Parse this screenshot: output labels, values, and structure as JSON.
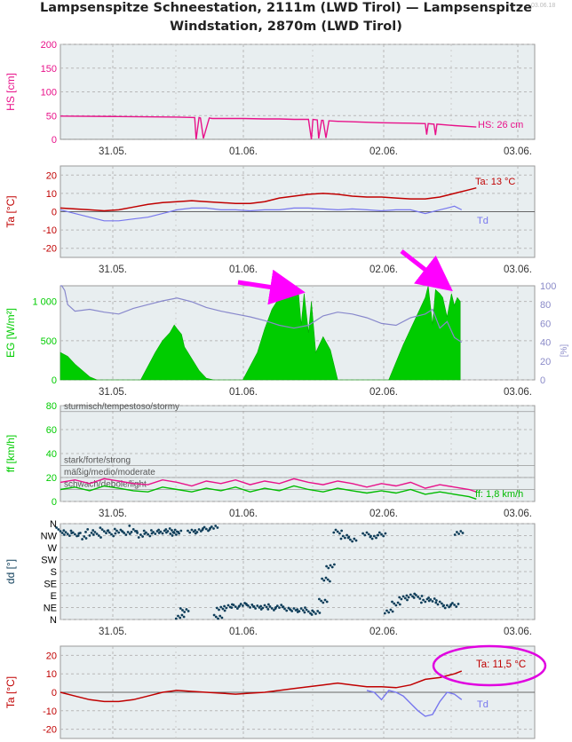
{
  "title": {
    "line1": "Lampsenspitze Schneestation, 2111m (LWD Tirol) — Lampsenspitze",
    "line2": "Windstation, 2870m (LWD Tirol)",
    "stamp": "03.06.18"
  },
  "x_tick_labels": [
    "31.05.",
    "01.06.",
    "02.06.",
    "03.06."
  ],
  "colors": {
    "snow": "#e8128a",
    "temp": "#c00000",
    "dew": "#7777ee",
    "radiation": "#00cc00",
    "humidity": "#8888cc",
    "wind": "#e8128a",
    "wind_mean": "#00bb00",
    "dir": "#0f3e5a",
    "annot_arrow": "#ff00ff",
    "annot_circle": "#e000e0",
    "plot_bg": "#e8eef0"
  },
  "chart_data": [
    {
      "type": "line",
      "ylabel": "HS [cm]",
      "ylim": [
        0,
        200
      ],
      "yticks": [
        "0",
        "50",
        "100",
        "150",
        "200"
      ],
      "xlim": [
        0,
        3.25
      ],
      "series": [
        {
          "name": "HS",
          "x": [
            0,
            0.4,
            0.8,
            0.92,
            0.93,
            0.95,
            0.96,
            0.98,
            1.02,
            1.04,
            1.1,
            1.25,
            1.4,
            1.5,
            1.6,
            1.7,
            1.72,
            1.73,
            1.76,
            1.77,
            1.79,
            1.8,
            1.82,
            1.84,
            1.9,
            2.0,
            2.2,
            2.4,
            2.5,
            2.51,
            2.52,
            2.56,
            2.57,
            2.58,
            2.7,
            2.85
          ],
          "values": [
            49,
            48,
            47,
            46,
            0,
            46,
            45,
            2,
            45,
            44,
            44,
            44,
            43,
            43,
            42,
            42,
            0,
            42,
            41,
            2,
            40,
            40,
            3,
            39,
            38,
            37,
            35,
            34,
            33,
            10,
            33,
            32,
            9,
            32,
            29,
            26
          ]
        }
      ],
      "end_label": "HS: 26 cm"
    },
    {
      "type": "line",
      "ylabel": "Ta [°C]",
      "ylim": [
        -25,
        25
      ],
      "yticks": [
        "-20",
        "-10",
        "0",
        "10",
        "20"
      ],
      "xlim": [
        0,
        3.25
      ],
      "series": [
        {
          "name": "Ta",
          "x": [
            0,
            0.1,
            0.2,
            0.3,
            0.4,
            0.5,
            0.6,
            0.7,
            0.8,
            0.9,
            1.0,
            1.1,
            1.2,
            1.3,
            1.4,
            1.5,
            1.6,
            1.7,
            1.8,
            1.9,
            2.0,
            2.1,
            2.2,
            2.3,
            2.4,
            2.5,
            2.6,
            2.7,
            2.8,
            2.85
          ],
          "values": [
            2,
            1.5,
            1,
            0.5,
            1,
            2.5,
            4,
            5,
            5.5,
            6,
            5.5,
            5,
            4.5,
            4.5,
            5.5,
            7.5,
            8.5,
            9.5,
            10,
            9.5,
            8.5,
            8,
            8,
            7.5,
            7,
            7,
            8,
            10,
            12,
            13
          ]
        },
        {
          "name": "Td",
          "x": [
            0,
            0.1,
            0.2,
            0.3,
            0.4,
            0.5,
            0.6,
            0.7,
            0.8,
            0.9,
            1.0,
            1.1,
            1.2,
            1.3,
            1.4,
            1.5,
            1.6,
            1.7,
            1.8,
            1.9,
            2.0,
            2.1,
            2.2,
            2.3,
            2.4,
            2.5,
            2.6,
            2.65,
            2.7,
            2.75
          ],
          "values": [
            1,
            -1,
            -3,
            -5,
            -5,
            -4,
            -3,
            -1,
            1,
            2,
            2,
            1,
            1,
            0.5,
            1,
            1,
            2,
            2,
            1.5,
            1,
            1.5,
            1,
            0.5,
            1,
            1,
            -1,
            1,
            2,
            3,
            1
          ]
        }
      ],
      "end_labels": [
        "Ta: 13 °C",
        "Td"
      ]
    },
    {
      "type": "area",
      "ylabel": "EG [W/m²]",
      "ylim": [
        0,
        1200
      ],
      "yticks": [
        "0",
        "500",
        "1 000"
      ],
      "y2label": "[%]",
      "y2lim": [
        0,
        100
      ],
      "y2ticks": [
        "0",
        "20",
        "40",
        "60",
        "80",
        "100"
      ],
      "xlim": [
        0,
        3.25
      ],
      "series": [
        {
          "name": "EG",
          "x": [
            0,
            0.05,
            0.1,
            0.2,
            0.25,
            0.55,
            0.65,
            0.7,
            0.75,
            0.78,
            0.8,
            0.83,
            0.85,
            0.95,
            1.0,
            1.05,
            1.25,
            1.35,
            1.4,
            1.45,
            1.5,
            1.55,
            1.6,
            1.63,
            1.65,
            1.67,
            1.7,
            1.72,
            1.75,
            1.8,
            1.85,
            1.9,
            2.25,
            2.35,
            2.45,
            2.5,
            2.52,
            2.55,
            2.57,
            2.6,
            2.62,
            2.65,
            2.68,
            2.7,
            2.72,
            2.74
          ],
          "values": [
            350,
            300,
            200,
            40,
            0,
            0,
            350,
            500,
            600,
            700,
            650,
            580,
            420,
            120,
            20,
            0,
            0,
            350,
            650,
            900,
            1050,
            1150,
            1180,
            1150,
            700,
            1100,
            600,
            1000,
            350,
            550,
            380,
            0,
            0,
            450,
            850,
            1050,
            1200,
            700,
            1150,
            1100,
            1050,
            800,
            1100,
            950,
            1050,
            1000
          ]
        },
        {
          "name": "RH",
          "axis": "right",
          "x": [
            0.0,
            0.01,
            0.03,
            0.05,
            0.1,
            0.2,
            0.3,
            0.4,
            0.5,
            0.6,
            0.7,
            0.8,
            0.9,
            1.0,
            1.1,
            1.2,
            1.3,
            1.4,
            1.5,
            1.6,
            1.7,
            1.8,
            1.9,
            2.0,
            2.1,
            2.2,
            2.3,
            2.4,
            2.5,
            2.55,
            2.6,
            2.65,
            2.7,
            2.75
          ],
          "values": [
            100,
            100,
            95,
            80,
            73,
            75,
            72,
            70,
            76,
            80,
            84,
            87,
            83,
            77,
            73,
            70,
            67,
            63,
            58,
            55,
            58,
            68,
            72,
            70,
            66,
            60,
            58,
            66,
            70,
            75,
            55,
            62,
            45,
            40
          ]
        }
      ]
    },
    {
      "type": "line",
      "ylabel": "ff [km/h]",
      "ylim": [
        0,
        80
      ],
      "yticks": [
        "0",
        "20",
        "40",
        "60",
        "80"
      ],
      "xlim": [
        0,
        3.25
      ],
      "category_lines": [
        {
          "label": "sturmisch/tempestoso/stormy",
          "value": 75
        },
        {
          "label": "stark/forte/strong",
          "value": 30
        },
        {
          "label": "mäßig/medio/moderate",
          "value": 20
        },
        {
          "label": "schwach/debole/light",
          "value": 10
        }
      ],
      "series": [
        {
          "name": "ff max",
          "x": [
            0,
            0.1,
            0.2,
            0.3,
            0.4,
            0.5,
            0.6,
            0.7,
            0.8,
            0.9,
            1.0,
            1.1,
            1.2,
            1.3,
            1.4,
            1.5,
            1.6,
            1.7,
            1.8,
            1.9,
            2.0,
            2.1,
            2.2,
            2.3,
            2.4,
            2.5,
            2.6,
            2.7,
            2.8,
            2.85
          ],
          "values": [
            16,
            18,
            15,
            19,
            17,
            15,
            14,
            18,
            16,
            13,
            17,
            15,
            18,
            14,
            17,
            15,
            19,
            16,
            14,
            17,
            15,
            12,
            15,
            13,
            16,
            11,
            14,
            12,
            10,
            8
          ]
        },
        {
          "name": "ff",
          "x": [
            0,
            0.1,
            0.2,
            0.3,
            0.4,
            0.5,
            0.6,
            0.7,
            0.8,
            0.9,
            1.0,
            1.1,
            1.2,
            1.3,
            1.4,
            1.5,
            1.6,
            1.7,
            1.8,
            1.9,
            2.0,
            2.1,
            2.2,
            2.3,
            2.4,
            2.5,
            2.6,
            2.7,
            2.8,
            2.85
          ],
          "values": [
            10,
            12,
            9,
            13,
            11,
            9,
            8,
            12,
            10,
            8,
            11,
            9,
            12,
            8,
            11,
            9,
            13,
            10,
            8,
            11,
            9,
            7,
            9,
            7,
            10,
            6,
            8,
            6,
            4,
            2
          ]
        }
      ],
      "end_label": "ff: 1,8 km/h"
    },
    {
      "type": "scatter",
      "ylabel": "dd [°]",
      "ylim": [
        0,
        360
      ],
      "yticks": [
        "N",
        "NE",
        "E",
        "SE",
        "S",
        "SW",
        "W",
        "NW",
        "N"
      ],
      "xlim": [
        0,
        3.25
      ],
      "series": [
        {
          "name": "dd",
          "x": [
            0.0,
            0.05,
            0.1,
            0.15,
            0.2,
            0.25,
            0.3,
            0.35,
            0.4,
            0.45,
            0.5,
            0.55,
            0.6,
            0.65,
            0.7,
            0.75,
            0.78,
            0.8,
            0.82,
            0.85,
            0.9,
            0.95,
            1.0,
            1.05,
            1.08,
            1.1,
            1.15,
            1.2,
            1.25,
            1.3,
            1.35,
            1.4,
            1.45,
            1.5,
            1.55,
            1.6,
            1.65,
            1.7,
            1.75,
            1.8,
            1.82,
            1.85,
            1.9,
            1.95,
            2.0,
            2.1,
            2.15,
            2.2,
            2.25,
            2.3,
            2.35,
            2.4,
            2.45,
            2.5,
            2.55,
            2.6,
            2.65,
            2.7,
            2.73
          ],
          "values": [
            325,
            318,
            320,
            305,
            322,
            315,
            328,
            320,
            330,
            325,
            332,
            315,
            320,
            325,
            330,
            335,
            322,
            330,
            10,
            35,
            330,
            335,
            340,
            345,
            10,
            40,
            50,
            48,
            55,
            52,
            45,
            50,
            42,
            48,
            40,
            35,
            38,
            30,
            25,
            70,
            150,
            200,
            330,
            310,
            300,
            320,
            310,
            320,
            30,
            60,
            80,
            90,
            85,
            70,
            75,
            60,
            50,
            55,
            325
          ]
        }
      ]
    },
    {
      "type": "line",
      "ylabel": "Ta [°C]",
      "ylim": [
        -25,
        25
      ],
      "yticks": [
        "-20",
        "-10",
        "0",
        "10",
        "20"
      ],
      "xlim": [
        0,
        3.25
      ],
      "series": [
        {
          "name": "Ta",
          "x": [
            0,
            0.1,
            0.2,
            0.3,
            0.4,
            0.5,
            0.6,
            0.7,
            0.8,
            0.9,
            1.0,
            1.1,
            1.2,
            1.3,
            1.4,
            1.5,
            1.6,
            1.7,
            1.8,
            1.9,
            2.0,
            2.1,
            2.2,
            2.3,
            2.4,
            2.5,
            2.6,
            2.7,
            2.75
          ],
          "values": [
            0,
            -2,
            -4,
            -5,
            -5,
            -4,
            -2,
            0,
            1,
            0.5,
            0,
            -0.5,
            -1,
            -0.5,
            0,
            1,
            2,
            3,
            4,
            5,
            4,
            3,
            3,
            2.5,
            4,
            7,
            8,
            10,
            11.5
          ]
        },
        {
          "name": "Td",
          "x": [
            2.1,
            2.15,
            2.2,
            2.25,
            2.3,
            2.35,
            2.4,
            2.45,
            2.5,
            2.55,
            2.6,
            2.65,
            2.7,
            2.75
          ],
          "values": [
            1,
            0,
            -4,
            1,
            0,
            -2,
            -6,
            -10,
            -13,
            -12,
            -5,
            0,
            -1,
            -4
          ]
        }
      ],
      "end_labels": [
        "Ta: 11,5 °C",
        "Td"
      ]
    }
  ]
}
